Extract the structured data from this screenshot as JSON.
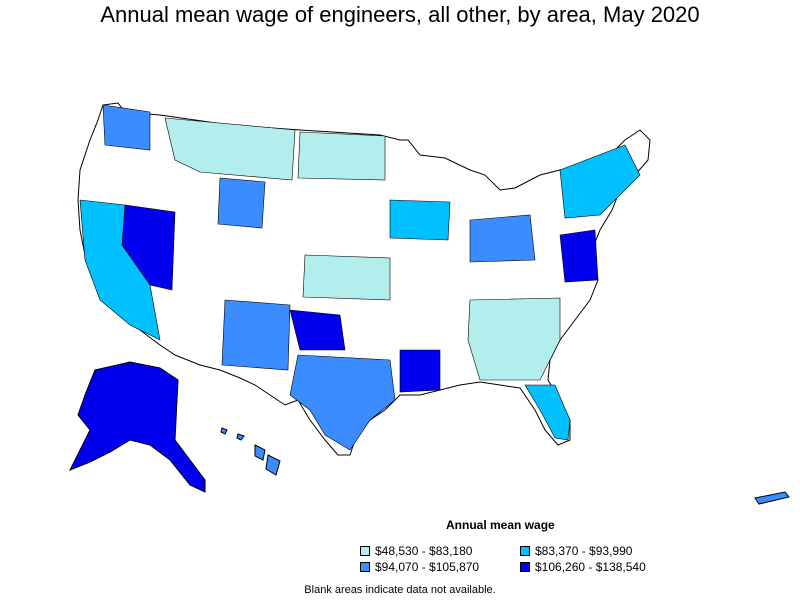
{
  "title": "Annual mean wage of engineers, all other, by area, May 2020",
  "legend": {
    "title": "Annual mean wage",
    "items": [
      {
        "label": "$48,530 - $83,180",
        "color": "#b3eeee"
      },
      {
        "label": "$83,370 - $93,990",
        "color": "#00c0ff"
      },
      {
        "label": "$94,070 - $105,870",
        "color": "#3a8cff"
      },
      {
        "label": "$106,260 - $138,540",
        "color": "#0000ee"
      }
    ]
  },
  "footnote": "Blank areas indicate data not available."
}
